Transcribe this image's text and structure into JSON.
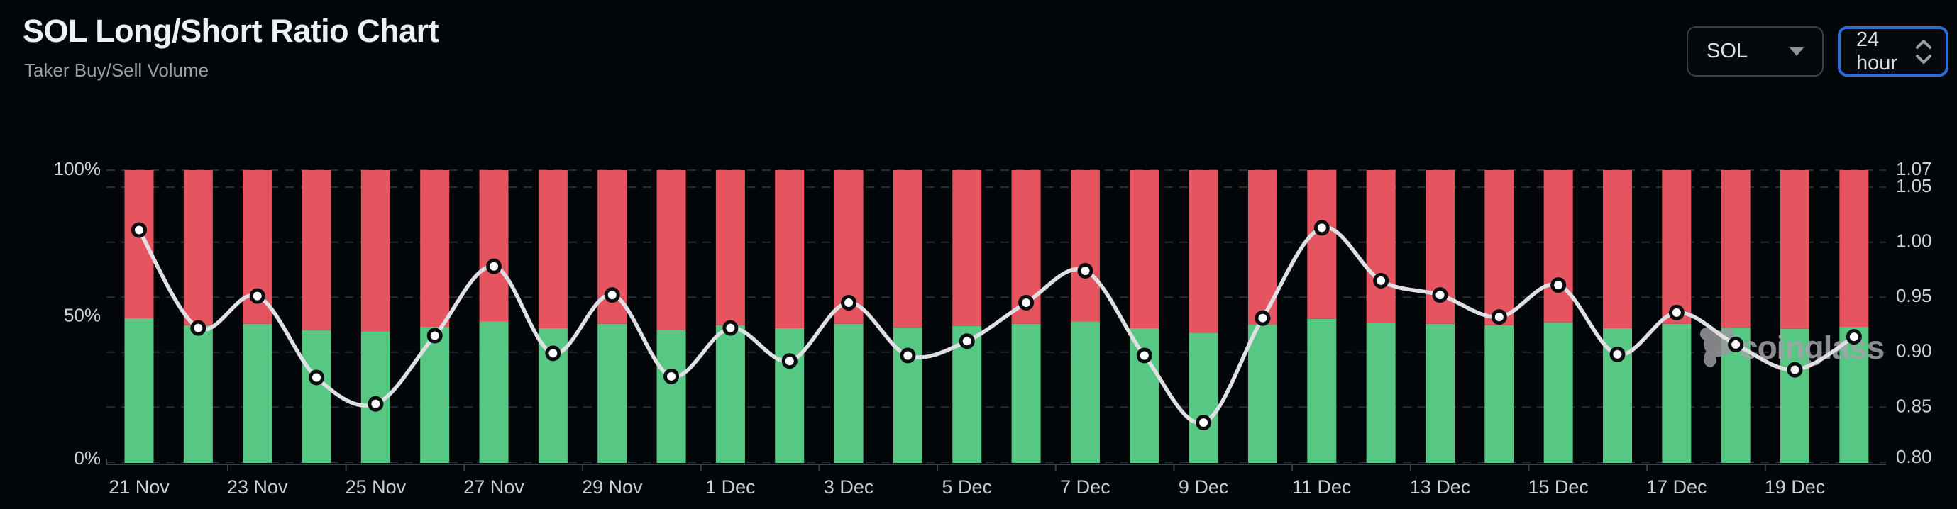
{
  "header": {
    "title": "SOL Long/Short Ratio Chart",
    "subtitle": "Taker Buy/Sell Volume"
  },
  "controls": {
    "symbol": {
      "value": "SOL"
    },
    "interval": {
      "value": "24 hour"
    }
  },
  "watermark": {
    "label": "coinglass"
  },
  "colors": {
    "background": "#030609",
    "buy_green": "#57c784",
    "sell_red": "#e5545f",
    "line": "#e0e0e4",
    "dot_fill": "#ffffff",
    "dot_ring": "#0b0d11",
    "grid": "#282d34",
    "axis_line": "#3a3f46",
    "axis_text": "#ced2d8",
    "accent_blue": "#2e6cd9"
  },
  "chart_data": {
    "type": "bar",
    "subtype": "stacked-percent-columns-with-ratio-line",
    "title": "SOL Long/Short Ratio Chart",
    "subtitle": "Taker Buy/Sell Volume",
    "legend": "none",
    "grid": "horizontal-dashed",
    "categories": [
      "21 Nov",
      "22 Nov",
      "23 Nov",
      "24 Nov",
      "25 Nov",
      "26 Nov",
      "27 Nov",
      "28 Nov",
      "29 Nov",
      "30 Nov",
      "1 Dec",
      "2 Dec",
      "3 Dec",
      "4 Dec",
      "5 Dec",
      "6 Dec",
      "7 Dec",
      "8 Dec",
      "9 Dec",
      "10 Dec",
      "11 Dec",
      "12 Dec",
      "13 Dec",
      "14 Dec",
      "15 Dec",
      "16 Dec",
      "17 Dec",
      "18 Dec",
      "19 Dec",
      "20 Dec"
    ],
    "series": [
      {
        "name": "Taker Buy %",
        "type": "bar",
        "stack": "volume",
        "color_key": "buy_green",
        "values": [
          49.4,
          47.0,
          47.5,
          45.3,
          45.0,
          46.5,
          48.4,
          46.0,
          47.5,
          45.5,
          47.0,
          46.0,
          47.5,
          46.2,
          46.8,
          47.5,
          48.3,
          46.0,
          44.5,
          47.2,
          49.2,
          47.7,
          47.5,
          47.0,
          48.0,
          46.0,
          47.5,
          46.2,
          45.8,
          46.5
        ]
      },
      {
        "name": "Taker Sell %",
        "type": "bar",
        "stack": "volume",
        "color_key": "sell_red",
        "values": [
          50.6,
          53.0,
          52.5,
          54.7,
          55.0,
          53.5,
          51.6,
          54.0,
          52.5,
          54.5,
          53.0,
          54.0,
          52.5,
          53.8,
          53.2,
          52.5,
          51.7,
          54.0,
          55.5,
          52.8,
          50.8,
          52.3,
          52.5,
          53.0,
          52.0,
          54.0,
          52.5,
          53.8,
          54.2,
          53.5
        ]
      },
      {
        "name": "Long/Short Ratio",
        "type": "line",
        "axis": "right",
        "color_key": "line",
        "values": [
          1.011,
          0.922,
          0.951,
          0.877,
          0.853,
          0.915,
          0.978,
          0.899,
          0.952,
          0.878,
          0.922,
          0.892,
          0.945,
          0.897,
          0.91,
          0.945,
          0.974,
          0.897,
          0.836,
          0.931,
          1.013,
          0.965,
          0.952,
          0.932,
          0.961,
          0.898,
          0.936,
          0.907,
          0.884,
          0.914
        ]
      }
    ],
    "left_axis": {
      "unit": "%",
      "min": 0,
      "max": 100,
      "ticks": [
        "100%",
        "50%",
        "0%"
      ],
      "tick_values": [
        100,
        50,
        0
      ]
    },
    "right_axis": {
      "min": 0.8,
      "max": 1.07,
      "ticks": [
        "1.07",
        "1.05",
        "1.00",
        "0.95",
        "0.90",
        "0.85",
        "0.80"
      ],
      "tick_values": [
        1.07,
        1.05,
        1.0,
        0.95,
        0.9,
        0.85,
        0.8
      ]
    },
    "x_axis": {
      "label_every_n_days": 2,
      "labels": [
        "21 Nov",
        "23 Nov",
        "25 Nov",
        "27 Nov",
        "29 Nov",
        "1 Dec",
        "3 Dec",
        "5 Dec",
        "7 Dec",
        "9 Dec",
        "11 Dec",
        "13 Dec",
        "15 Dec",
        "17 Dec",
        "19 Dec"
      ]
    }
  }
}
